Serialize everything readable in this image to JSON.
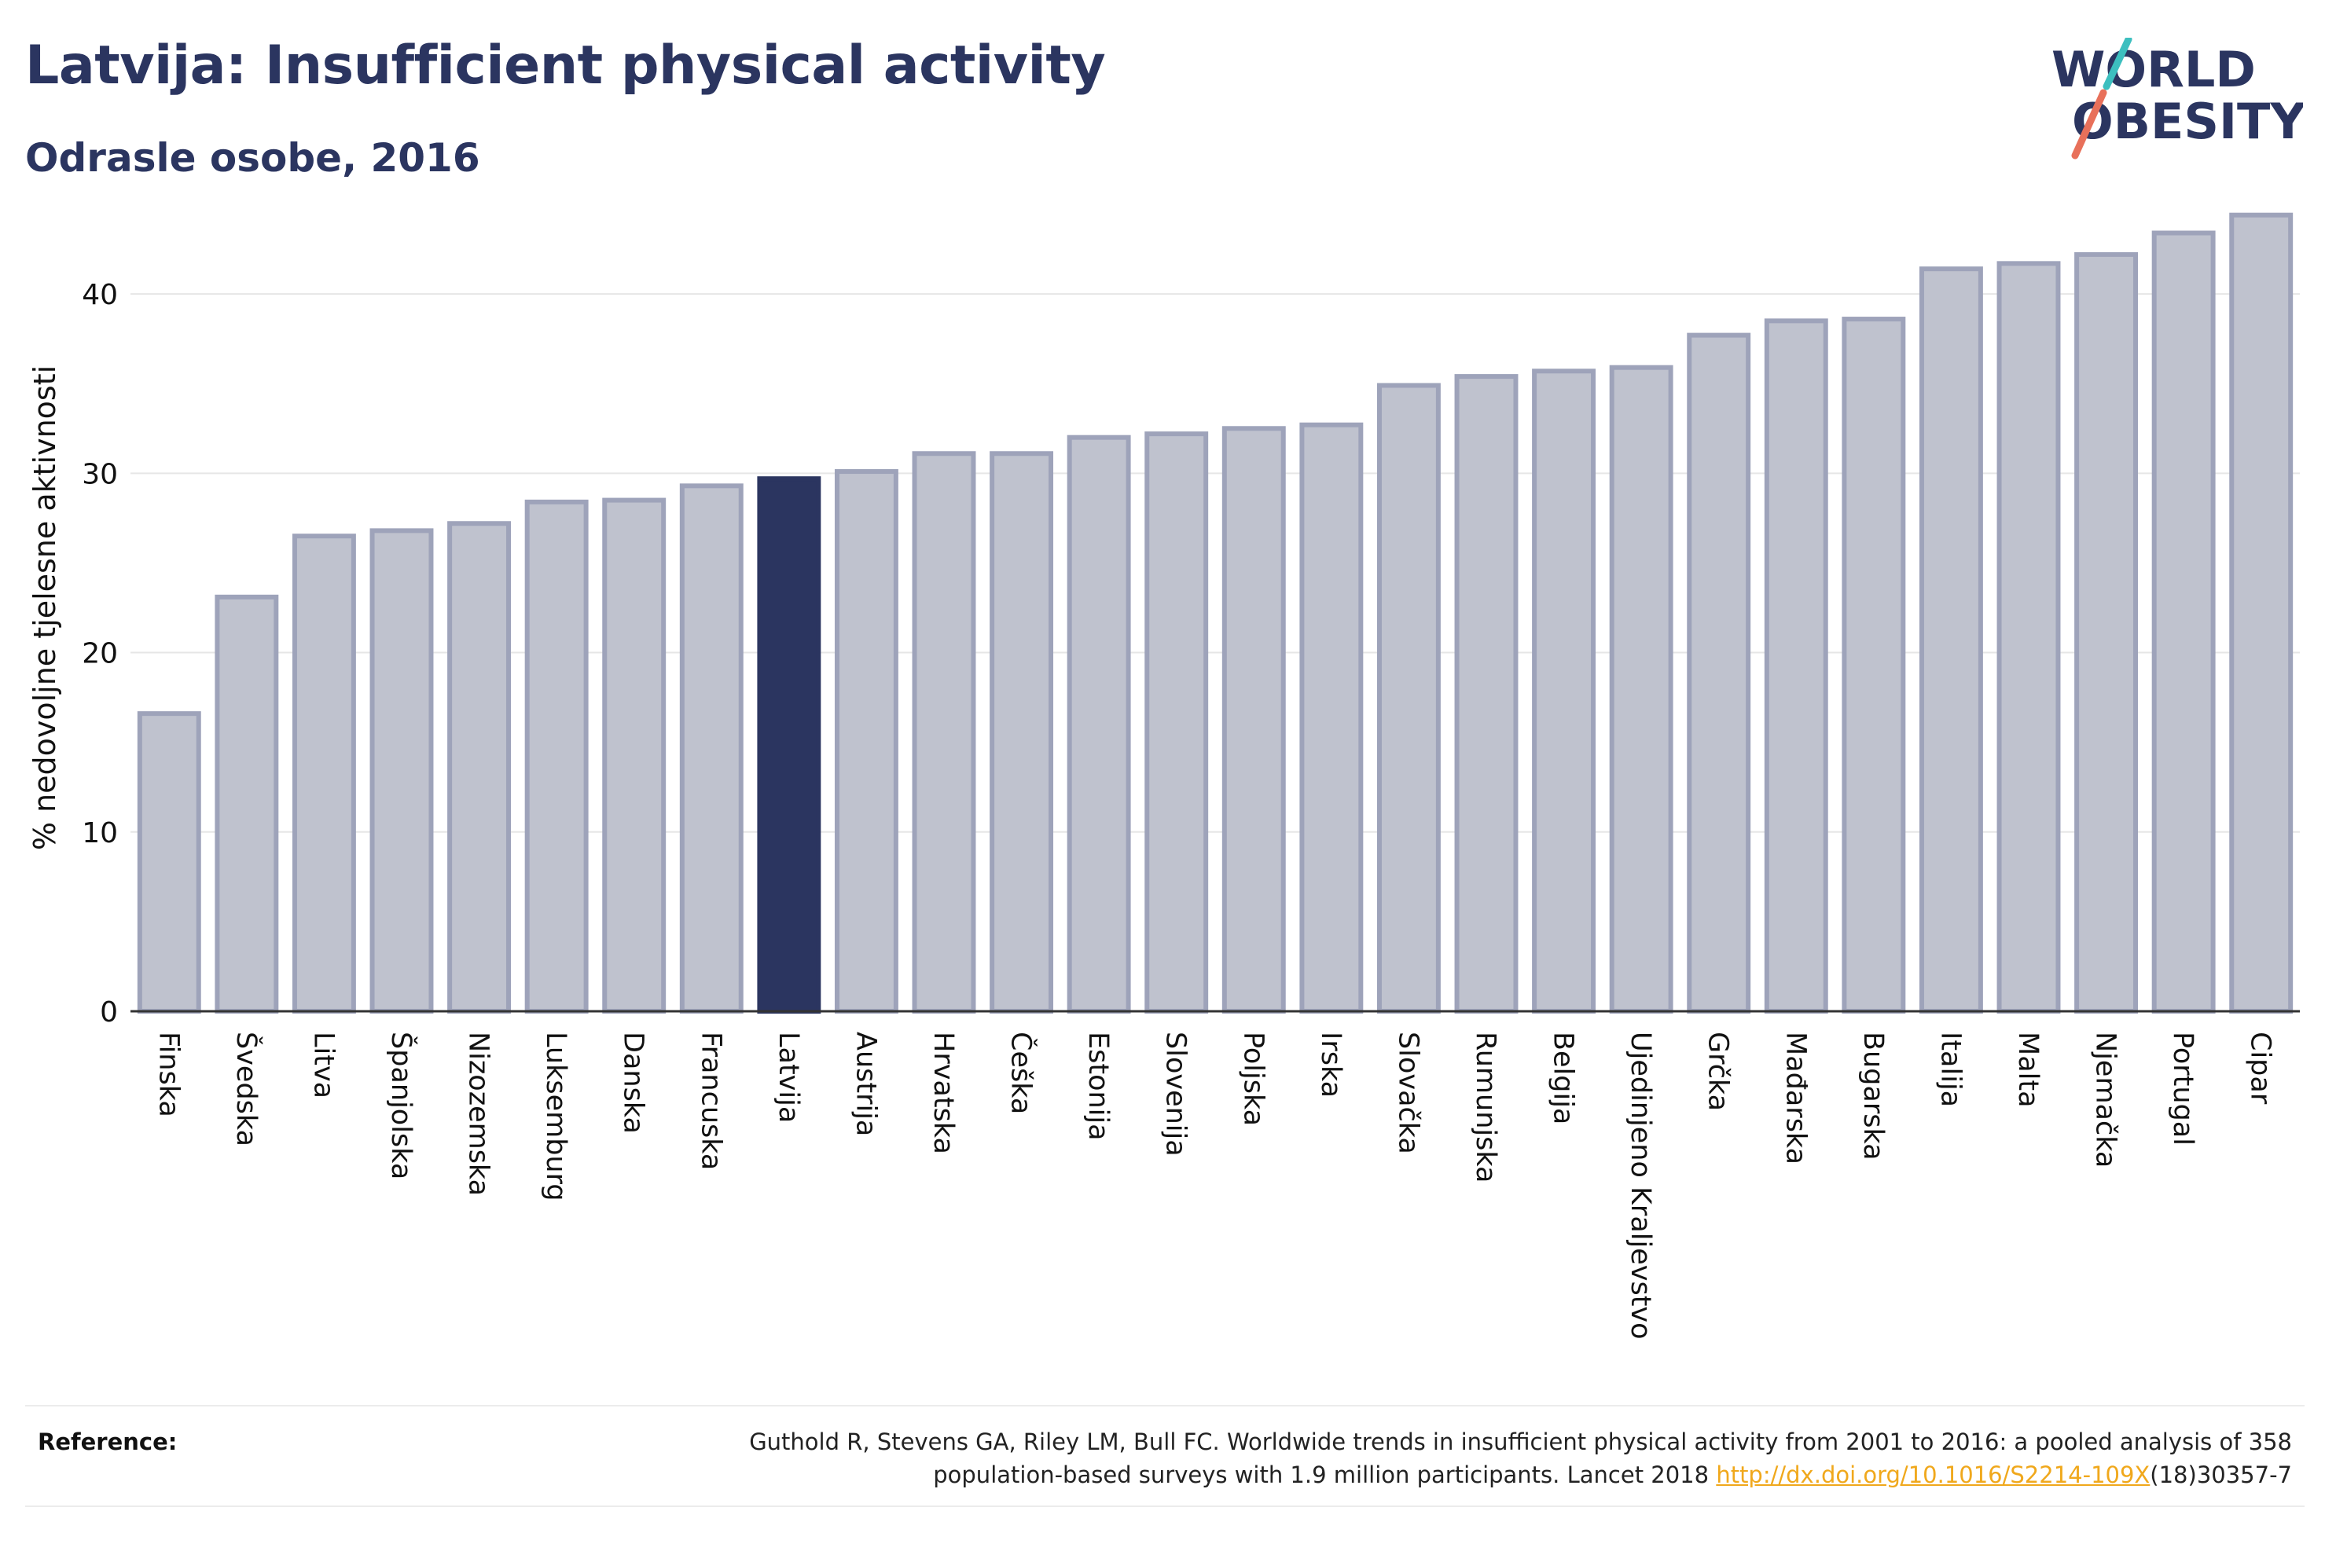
{
  "header": {
    "title": "Latvija: Insufficient physical activity",
    "subtitle": "Odrasle osobe, 2016"
  },
  "logo": {
    "line1": "WORLD",
    "line2": "OBESITY"
  },
  "chart_data": {
    "type": "bar",
    "title": "Latvija: Insufficient physical activity",
    "subtitle": "Odrasle osobe, 2016",
    "ylabel": "% nedovoljne tjelesne aktivnosti",
    "xlabel": "",
    "ylim": [
      0,
      45
    ],
    "yticks": [
      0,
      10,
      20,
      30,
      40
    ],
    "grid": true,
    "highlight": "Latvija",
    "categories": [
      "Finska",
      "Švedska",
      "Litva",
      "Španjolska",
      "Nizozemska",
      "Luksemburg",
      "Danska",
      "Francuska",
      "Latvija",
      "Austrija",
      "Hrvatska",
      "Češka",
      "Estonija",
      "Slovenija",
      "Poljska",
      "Irska",
      "Slovačka",
      "Rumunjska",
      "Belgija",
      "Ujedinjeno Kraljevstvo",
      "Grčka",
      "Mađarska",
      "Bugarska",
      "Italija",
      "Malta",
      "Njemačka",
      "Portugal",
      "Cipar"
    ],
    "values": [
      16.6,
      23.1,
      26.5,
      26.8,
      27.2,
      28.4,
      28.5,
      29.3,
      29.7,
      30.1,
      31.1,
      31.1,
      32.0,
      32.2,
      32.5,
      32.7,
      34.9,
      35.4,
      35.7,
      35.9,
      37.7,
      38.5,
      38.6,
      41.4,
      41.7,
      42.2,
      43.4,
      44.4
    ],
    "colors": {
      "bar_fill": "#bfc2ce",
      "bar_border": "#9ea3ba",
      "highlight_fill": "#2b3560",
      "grid": "#e6e6e6",
      "axis": "#333333"
    }
  },
  "reference": {
    "label": "Reference:",
    "text_line1": "Guthold R, Stevens GA, Riley LM, Bull FC. Worldwide trends in insufficient physical activity from 2001 to 2016: a pooled analysis of 358",
    "text_line2_pre": "population-based surveys with 1.9 million participants. Lancet 2018 ",
    "link": "http://dx.doi.org/10.1016/S2214-109X",
    "text_line2_post": "(18)30357-7"
  }
}
